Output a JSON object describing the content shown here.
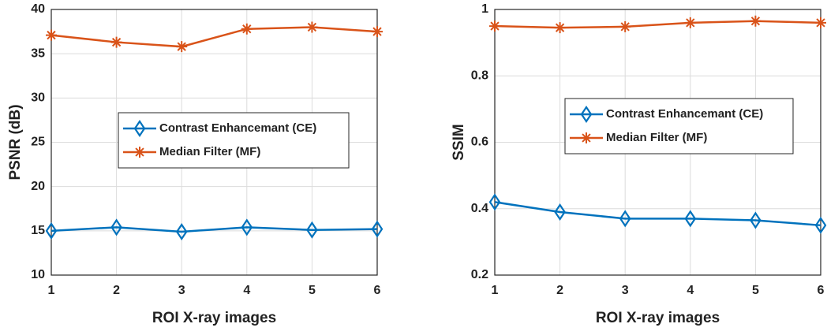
{
  "chart_data": [
    {
      "type": "line",
      "xlabel": "ROI X-ray images",
      "ylabel": "PSNR (dB)",
      "x": [
        1,
        2,
        3,
        4,
        5,
        6
      ],
      "xlim": [
        1,
        6
      ],
      "xticks": [
        1,
        2,
        3,
        4,
        5,
        6
      ],
      "ylim": [
        10,
        40
      ],
      "yticks": [
        10,
        15,
        20,
        25,
        30,
        35,
        40
      ],
      "grid": true,
      "legend": "center",
      "series": [
        {
          "name": "Contrast Enhancemant (CE)",
          "color": "#0072bd",
          "marker": "diamond",
          "values": [
            15.0,
            15.4,
            14.9,
            15.4,
            15.1,
            15.2
          ]
        },
        {
          "name": "Median Filter (MF)",
          "color": "#d95319",
          "marker": "asterisk",
          "values": [
            37.1,
            36.3,
            35.8,
            37.8,
            38.0,
            37.5
          ]
        }
      ]
    },
    {
      "type": "line",
      "xlabel": "ROI X-ray images",
      "ylabel": "SSIM",
      "x": [
        1,
        2,
        3,
        4,
        5,
        6
      ],
      "xlim": [
        1,
        6
      ],
      "xticks": [
        1,
        2,
        3,
        4,
        5,
        6
      ],
      "ylim": [
        0.2,
        1
      ],
      "yticks": [
        0.2,
        0.4,
        0.6,
        0.8,
        1
      ],
      "grid": true,
      "legend": "upper center",
      "series": [
        {
          "name": "Contrast Enhancemant (CE)",
          "color": "#0072bd",
          "marker": "diamond",
          "values": [
            0.42,
            0.39,
            0.37,
            0.37,
            0.365,
            0.35
          ]
        },
        {
          "name": "Median Filter (MF)",
          "color": "#d95319",
          "marker": "asterisk",
          "values": [
            0.95,
            0.945,
            0.948,
            0.96,
            0.965,
            0.96
          ]
        }
      ]
    }
  ]
}
